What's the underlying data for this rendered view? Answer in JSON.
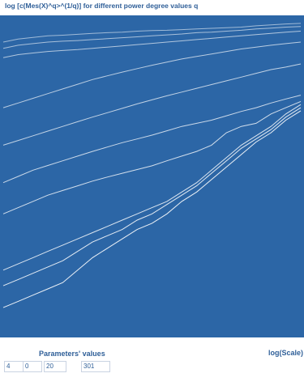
{
  "title": "log [c(Mes(X)^q>^(1/q)] for different power degree values q",
  "footer": {
    "parameters_label": "Parameters' values",
    "x_axis_label": "log(Scale)",
    "parameters": [
      "4",
      "0",
      "20",
      "301"
    ]
  },
  "colors": {
    "plot_background": "#2c66a6",
    "series_line": "#ffffff",
    "text": "#2f5f98"
  },
  "chart_data": {
    "type": "line",
    "title": "log [c(Mes(X)^q>^(1/q)] for different power degree values q",
    "xlabel": "log(Scale)",
    "ylabel": "",
    "xlim": [
      0,
      1
    ],
    "ylim": [
      0,
      1
    ],
    "grid": false,
    "legend": "none",
    "x": [
      0,
      0.05,
      0.1,
      0.15,
      0.2,
      0.25,
      0.3,
      0.35,
      0.4,
      0.45,
      0.5,
      0.55,
      0.6,
      0.65,
      0.7,
      0.75,
      0.8,
      0.85,
      0.9,
      0.95,
      1.0
    ],
    "series": [
      {
        "values": [
          0.93,
          0.94,
          0.945,
          0.95,
          0.952,
          0.955,
          0.958,
          0.96,
          0.962,
          0.965,
          0.967,
          0.968,
          0.97,
          0.972,
          0.974,
          0.976,
          0.978,
          0.982,
          0.985,
          0.988,
          0.99
        ]
      },
      {
        "values": [
          0.91,
          0.92,
          0.925,
          0.93,
          0.933,
          0.935,
          0.938,
          0.941,
          0.944,
          0.947,
          0.95,
          0.953,
          0.956,
          0.96,
          0.962,
          0.965,
          0.968,
          0.972,
          0.975,
          0.978,
          0.98
        ]
      },
      {
        "values": [
          0.88,
          0.89,
          0.895,
          0.9,
          0.903,
          0.906,
          0.91,
          0.914,
          0.918,
          0.922,
          0.926,
          0.93,
          0.934,
          0.938,
          0.942,
          0.946,
          0.95,
          0.954,
          0.958,
          0.962,
          0.965
        ]
      },
      {
        "values": [
          0.72,
          0.735,
          0.75,
          0.765,
          0.78,
          0.795,
          0.81,
          0.822,
          0.834,
          0.845,
          0.856,
          0.866,
          0.876,
          0.884,
          0.892,
          0.9,
          0.908,
          0.914,
          0.92,
          0.925,
          0.93
        ]
      },
      {
        "values": [
          0.6,
          0.615,
          0.63,
          0.645,
          0.66,
          0.675,
          0.69,
          0.704,
          0.718,
          0.732,
          0.745,
          0.758,
          0.77,
          0.782,
          0.794,
          0.806,
          0.818,
          0.83,
          0.842,
          0.85,
          0.86
        ]
      },
      {
        "values": [
          0.48,
          0.5,
          0.52,
          0.535,
          0.55,
          0.565,
          0.58,
          0.594,
          0.608,
          0.62,
          0.632,
          0.646,
          0.66,
          0.67,
          0.68,
          0.694,
          0.708,
          0.72,
          0.735,
          0.748,
          0.76
        ]
      },
      {
        "values": [
          0.38,
          0.4,
          0.42,
          0.44,
          0.455,
          0.47,
          0.485,
          0.498,
          0.51,
          0.522,
          0.534,
          0.55,
          0.565,
          0.58,
          0.6,
          0.64,
          0.66,
          0.67,
          0.7,
          0.72,
          0.74
        ]
      },
      {
        "values": [
          0.2,
          0.22,
          0.24,
          0.26,
          0.28,
          0.3,
          0.32,
          0.34,
          0.36,
          0.38,
          0.4,
          0.42,
          0.45,
          0.48,
          0.52,
          0.56,
          0.6,
          0.63,
          0.66,
          0.7,
          0.73
        ]
      },
      {
        "values": [
          0.15,
          0.17,
          0.19,
          0.21,
          0.23,
          0.26,
          0.29,
          0.31,
          0.33,
          0.36,
          0.38,
          0.41,
          0.44,
          0.47,
          0.51,
          0.55,
          0.59,
          0.62,
          0.65,
          0.69,
          0.72
        ]
      },
      {
        "values": [
          0.08,
          0.1,
          0.12,
          0.14,
          0.16,
          0.2,
          0.24,
          0.27,
          0.3,
          0.33,
          0.35,
          0.38,
          0.42,
          0.45,
          0.49,
          0.53,
          0.57,
          0.61,
          0.64,
          0.68,
          0.71
        ]
      }
    ]
  }
}
